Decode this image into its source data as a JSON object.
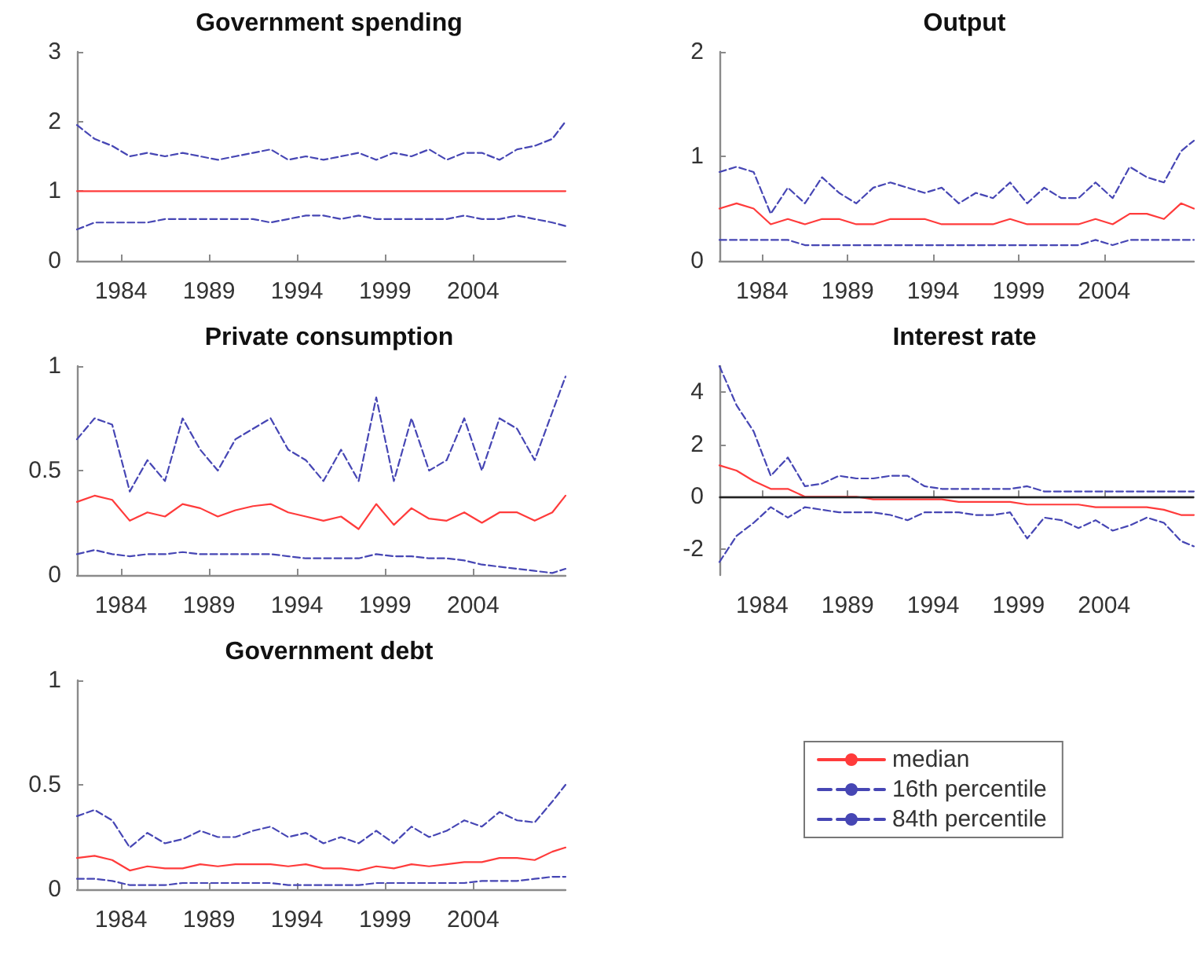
{
  "chart_data": [
    {
      "type": "line",
      "title": "Government spending",
      "x": [
        1981.5,
        1982.5,
        1983.5,
        1984.5,
        1985.5,
        1986.5,
        1987.5,
        1988.5,
        1989.5,
        1990.5,
        1991.5,
        1992.5,
        1993.5,
        1994.5,
        1995.5,
        1996.5,
        1997.5,
        1998.5,
        1999.5,
        2000.5,
        2001.5,
        2002.5,
        2003.5,
        2004.5,
        2005.5,
        2006.5,
        2007.5,
        2008.5,
        2009.25
      ],
      "xlim": [
        1981.5,
        2009.25
      ],
      "xticks": [
        1984,
        1989,
        1994,
        1999,
        2004
      ],
      "ylim": [
        0,
        3
      ],
      "yticks": [
        0,
        1,
        2,
        3
      ],
      "grid": false,
      "series": [
        {
          "color": "#ff3b3b",
          "line_style": "solid",
          "values": [
            1,
            1,
            1,
            1,
            1,
            1,
            1,
            1,
            1,
            1,
            1,
            1,
            1,
            1,
            1,
            1,
            1,
            1,
            1,
            1,
            1,
            1,
            1,
            1,
            1,
            1,
            1,
            1,
            1
          ]
        },
        {
          "color": "#4646b4",
          "line_style": "dashed",
          "values": [
            0.45,
            0.55,
            0.55,
            0.55,
            0.55,
            0.6,
            0.6,
            0.6,
            0.6,
            0.6,
            0.6,
            0.55,
            0.6,
            0.65,
            0.65,
            0.6,
            0.65,
            0.6,
            0.6,
            0.6,
            0.6,
            0.6,
            0.65,
            0.6,
            0.6,
            0.65,
            0.6,
            0.55,
            0.5
          ]
        },
        {
          "color": "#4646b4",
          "line_style": "dashed",
          "values": [
            1.95,
            1.75,
            1.65,
            1.5,
            1.55,
            1.5,
            1.55,
            1.5,
            1.45,
            1.5,
            1.55,
            1.6,
            1.45,
            1.5,
            1.45,
            1.5,
            1.55,
            1.45,
            1.55,
            1.5,
            1.6,
            1.45,
            1.55,
            1.55,
            1.45,
            1.6,
            1.65,
            1.75,
            2.0
          ]
        }
      ]
    },
    {
      "type": "line",
      "title": "Output",
      "x": [
        1981.5,
        1982.5,
        1983.5,
        1984.5,
        1985.5,
        1986.5,
        1987.5,
        1988.5,
        1989.5,
        1990.5,
        1991.5,
        1992.5,
        1993.5,
        1994.5,
        1995.5,
        1996.5,
        1997.5,
        1998.5,
        1999.5,
        2000.5,
        2001.5,
        2002.5,
        2003.5,
        2004.5,
        2005.5,
        2006.5,
        2007.5,
        2008.5,
        2009.25
      ],
      "xlim": [
        1981.5,
        2009.25
      ],
      "xticks": [
        1984,
        1989,
        1994,
        1999,
        2004
      ],
      "ylim": [
        0,
        2
      ],
      "yticks": [
        0,
        1,
        2
      ],
      "grid": false,
      "series": [
        {
          "color": "#ff3b3b",
          "line_style": "solid",
          "values": [
            0.5,
            0.55,
            0.5,
            0.35,
            0.4,
            0.35,
            0.4,
            0.4,
            0.35,
            0.35,
            0.4,
            0.4,
            0.4,
            0.35,
            0.35,
            0.35,
            0.35,
            0.4,
            0.35,
            0.35,
            0.35,
            0.35,
            0.4,
            0.35,
            0.45,
            0.45,
            0.4,
            0.55,
            0.5
          ]
        },
        {
          "color": "#4646b4",
          "line_style": "dashed",
          "values": [
            0.2,
            0.2,
            0.2,
            0.2,
            0.2,
            0.15,
            0.15,
            0.15,
            0.15,
            0.15,
            0.15,
            0.15,
            0.15,
            0.15,
            0.15,
            0.15,
            0.15,
            0.15,
            0.15,
            0.15,
            0.15,
            0.15,
            0.2,
            0.15,
            0.2,
            0.2,
            0.2,
            0.2,
            0.2
          ]
        },
        {
          "color": "#4646b4",
          "line_style": "dashed",
          "values": [
            0.85,
            0.9,
            0.85,
            0.45,
            0.7,
            0.55,
            0.8,
            0.65,
            0.55,
            0.7,
            0.75,
            0.7,
            0.65,
            0.7,
            0.55,
            0.65,
            0.6,
            0.75,
            0.55,
            0.7,
            0.6,
            0.6,
            0.75,
            0.6,
            0.9,
            0.8,
            0.75,
            1.05,
            1.15
          ]
        }
      ]
    },
    {
      "type": "line",
      "title": "Private consumption",
      "x": [
        1981.5,
        1982.5,
        1983.5,
        1984.5,
        1985.5,
        1986.5,
        1987.5,
        1988.5,
        1989.5,
        1990.5,
        1991.5,
        1992.5,
        1993.5,
        1994.5,
        1995.5,
        1996.5,
        1997.5,
        1998.5,
        1999.5,
        2000.5,
        2001.5,
        2002.5,
        2003.5,
        2004.5,
        2005.5,
        2006.5,
        2007.5,
        2008.5,
        2009.25
      ],
      "xlim": [
        1981.5,
        2009.25
      ],
      "xticks": [
        1984,
        1989,
        1994,
        1999,
        2004
      ],
      "ylim": [
        0,
        1
      ],
      "yticks": [
        0,
        0.5,
        1
      ],
      "grid": false,
      "series": [
        {
          "color": "#ff3b3b",
          "line_style": "solid",
          "values": [
            0.35,
            0.38,
            0.36,
            0.26,
            0.3,
            0.28,
            0.34,
            0.32,
            0.28,
            0.31,
            0.33,
            0.34,
            0.3,
            0.28,
            0.26,
            0.28,
            0.22,
            0.34,
            0.24,
            0.32,
            0.27,
            0.26,
            0.3,
            0.25,
            0.3,
            0.3,
            0.26,
            0.3,
            0.38
          ]
        },
        {
          "color": "#4646b4",
          "line_style": "dashed",
          "values": [
            0.1,
            0.12,
            0.1,
            0.09,
            0.1,
            0.1,
            0.11,
            0.1,
            0.1,
            0.1,
            0.1,
            0.1,
            0.09,
            0.08,
            0.08,
            0.08,
            0.08,
            0.1,
            0.09,
            0.09,
            0.08,
            0.08,
            0.07,
            0.05,
            0.04,
            0.03,
            0.02,
            0.01,
            0.03
          ]
        },
        {
          "color": "#4646b4",
          "line_style": "dashed",
          "values": [
            0.65,
            0.75,
            0.72,
            0.4,
            0.55,
            0.45,
            0.75,
            0.6,
            0.5,
            0.65,
            0.7,
            0.75,
            0.6,
            0.55,
            0.45,
            0.6,
            0.45,
            0.85,
            0.45,
            0.75,
            0.5,
            0.55,
            0.75,
            0.5,
            0.75,
            0.7,
            0.55,
            0.78,
            0.95
          ]
        }
      ]
    },
    {
      "type": "line",
      "title": "Interest rate",
      "x": [
        1981.5,
        1982.5,
        1983.5,
        1984.5,
        1985.5,
        1986.5,
        1987.5,
        1988.5,
        1989.5,
        1990.5,
        1991.5,
        1992.5,
        1993.5,
        1994.5,
        1995.5,
        1996.5,
        1997.5,
        1998.5,
        1999.5,
        2000.5,
        2001.5,
        2002.5,
        2003.5,
        2004.5,
        2005.5,
        2006.5,
        2007.5,
        2008.5,
        2009.25
      ],
      "xlim": [
        1981.5,
        2009.25
      ],
      "xticks": [
        1984,
        1989,
        1994,
        1999,
        2004
      ],
      "ylim": [
        -3,
        5
      ],
      "yticks": [
        -2,
        0,
        2,
        4
      ],
      "grid": false,
      "ref_lines": [
        {
          "axis": "y",
          "value": 0,
          "color": "#222222"
        }
      ],
      "series": [
        {
          "color": "#ff3b3b",
          "line_style": "solid",
          "values": [
            1.2,
            1.0,
            0.6,
            0.3,
            0.3,
            0.0,
            0.0,
            0.0,
            0.0,
            -0.1,
            -0.1,
            -0.1,
            -0.1,
            -0.1,
            -0.2,
            -0.2,
            -0.2,
            -0.2,
            -0.3,
            -0.3,
            -0.3,
            -0.3,
            -0.4,
            -0.4,
            -0.4,
            -0.4,
            -0.5,
            -0.7,
            -0.7
          ]
        },
        {
          "color": "#4646b4",
          "line_style": "dashed",
          "values": [
            -2.5,
            -1.5,
            -1.0,
            -0.4,
            -0.8,
            -0.4,
            -0.5,
            -0.6,
            -0.6,
            -0.6,
            -0.7,
            -0.9,
            -0.6,
            -0.6,
            -0.6,
            -0.7,
            -0.7,
            -0.6,
            -1.6,
            -0.8,
            -0.9,
            -1.2,
            -0.9,
            -1.3,
            -1.1,
            -0.8,
            -1.0,
            -1.7,
            -1.9
          ]
        },
        {
          "color": "#4646b4",
          "line_style": "dashed",
          "values": [
            5,
            3.5,
            2.5,
            0.8,
            1.5,
            0.4,
            0.5,
            0.8,
            0.7,
            0.7,
            0.8,
            0.8,
            0.4,
            0.3,
            0.3,
            0.3,
            0.3,
            0.3,
            0.4,
            0.2,
            0.2,
            0.2,
            0.2,
            0.2,
            0.2,
            0.2,
            0.2,
            0.2,
            0.2
          ]
        }
      ]
    },
    {
      "type": "line",
      "title": "Government debt",
      "x": [
        1981.5,
        1982.5,
        1983.5,
        1984.5,
        1985.5,
        1986.5,
        1987.5,
        1988.5,
        1989.5,
        1990.5,
        1991.5,
        1992.5,
        1993.5,
        1994.5,
        1995.5,
        1996.5,
        1997.5,
        1998.5,
        1999.5,
        2000.5,
        2001.5,
        2002.5,
        2003.5,
        2004.5,
        2005.5,
        2006.5,
        2007.5,
        2008.5,
        2009.25
      ],
      "xlim": [
        1981.5,
        2009.25
      ],
      "xticks": [
        1984,
        1989,
        1994,
        1999,
        2004
      ],
      "ylim": [
        0,
        1
      ],
      "yticks": [
        0,
        0.5,
        1
      ],
      "grid": false,
      "legend": "right",
      "series": [
        {
          "name": "median",
          "color": "#ff3b3b",
          "line_style": "solid",
          "values": [
            0.15,
            0.16,
            0.14,
            0.09,
            0.11,
            0.1,
            0.1,
            0.12,
            0.11,
            0.12,
            0.12,
            0.12,
            0.11,
            0.12,
            0.1,
            0.1,
            0.09,
            0.11,
            0.1,
            0.12,
            0.11,
            0.12,
            0.13,
            0.13,
            0.15,
            0.15,
            0.14,
            0.18,
            0.2
          ]
        },
        {
          "name": "16th percentile",
          "color": "#4646b4",
          "line_style": "dashed",
          "values": [
            0.05,
            0.05,
            0.04,
            0.02,
            0.02,
            0.02,
            0.03,
            0.03,
            0.03,
            0.03,
            0.03,
            0.03,
            0.02,
            0.02,
            0.02,
            0.02,
            0.02,
            0.03,
            0.03,
            0.03,
            0.03,
            0.03,
            0.03,
            0.04,
            0.04,
            0.04,
            0.05,
            0.06,
            0.06
          ]
        },
        {
          "name": "84th percentile",
          "color": "#4646b4",
          "line_style": "dashed",
          "values": [
            0.35,
            0.38,
            0.33,
            0.2,
            0.27,
            0.22,
            0.24,
            0.28,
            0.25,
            0.25,
            0.28,
            0.3,
            0.25,
            0.27,
            0.22,
            0.25,
            0.22,
            0.28,
            0.22,
            0.3,
            0.25,
            0.28,
            0.33,
            0.3,
            0.37,
            0.33,
            0.32,
            0.42,
            0.5
          ]
        }
      ]
    }
  ]
}
